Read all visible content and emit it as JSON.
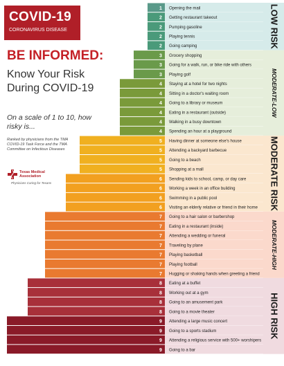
{
  "banner": {
    "title": "COVID-19",
    "subtitle": "CORONAVIRUS DISEASE"
  },
  "headline": "BE INFORMED:",
  "subhead": "Know Your Risk During COVID-19",
  "scale_text": "On a scale of 1 to 10, how risky is...",
  "ranked_text": "Ranked by physicians from the TMA COVID-19 Task Force and the TMA Committee on Infectious Diseases",
  "logo": {
    "name": "Texas Medical Association",
    "tagline": "Physicians Caring for Texans"
  },
  "risk_labels": [
    {
      "text": "LOW RISK",
      "style": "bold",
      "color": "#1a1a1a"
    },
    {
      "text": "MODERATE-LOW",
      "style": "italic",
      "color": "#1a1a1a"
    },
    {
      "text": "MODERATE RISK",
      "style": "bold",
      "color": "#1a1a1a"
    },
    {
      "text": "MODERATE-HIGH",
      "style": "italic",
      "color": "#1a1a1a"
    },
    {
      "text": "HIGH RISK",
      "style": "bold",
      "color": "#1a1a1a"
    }
  ],
  "colors": {
    "1": "#5a9a8a",
    "2": "#4a9a7a",
    "3": "#6a9a4a",
    "4": "#7a9a3a",
    "5": "#f0b020",
    "6": "#f2a020",
    "7": "#e97a30",
    "8": "#a8303a",
    "9": "#8a1a28"
  },
  "bands": {
    "low": "#d6ebea",
    "modlow": "#e6eedb",
    "moderate": "#fbe7cf",
    "modhigh": "#fbd9cc",
    "high": "#f0dbe0"
  },
  "chart_data": {
    "type": "bar",
    "title": "",
    "categories": [
      "Opening the mail",
      "Getting restaurant takeout",
      "Pumping gasoline",
      "Playing tennis",
      "Going camping",
      "Grocery shopping",
      "Going for a walk, run, or bike ride with others",
      "Playing golf",
      "Staying at a hotel for two nights",
      "Sitting in a doctor's waiting room",
      "Going to a library or museum",
      "Eating in a restaurant (outside)",
      "Walking in a busy downtown",
      "Spending an hour at a playground",
      "Having dinner at someone else's house",
      "Attending a backyard barbecue",
      "Going to a beach",
      "Shopping at a mall",
      "Sending kids to school, camp, or day care",
      "Working a week in an office building",
      "Swimming in a public pool",
      "Visiting an elderly relative or friend in their home",
      "Going to a hair salon or barbershop",
      "Eating in a restaurant (inside)",
      "Attending a wedding or funeral",
      "Traveling by plane",
      "Playing basketball",
      "Playing football",
      "Hugging or shaking hands when greeting a friend",
      "Eating at a buffet",
      "Working out at a gym",
      "Going to an amusement park",
      "Going to a movie theater",
      "Attending a large music concert",
      "Going to a sports stadium",
      "Attending a religious service with 500+ worshipers",
      "Going to a bar"
    ],
    "values": [
      1,
      2,
      2,
      2,
      2,
      3,
      3,
      3,
      4,
      4,
      4,
      4,
      4,
      4,
      5,
      5,
      5,
      5,
      6,
      6,
      6,
      6,
      7,
      7,
      7,
      7,
      7,
      7,
      7,
      8,
      8,
      8,
      8,
      9,
      9,
      9,
      9
    ],
    "xlim": [
      0,
      10
    ]
  }
}
